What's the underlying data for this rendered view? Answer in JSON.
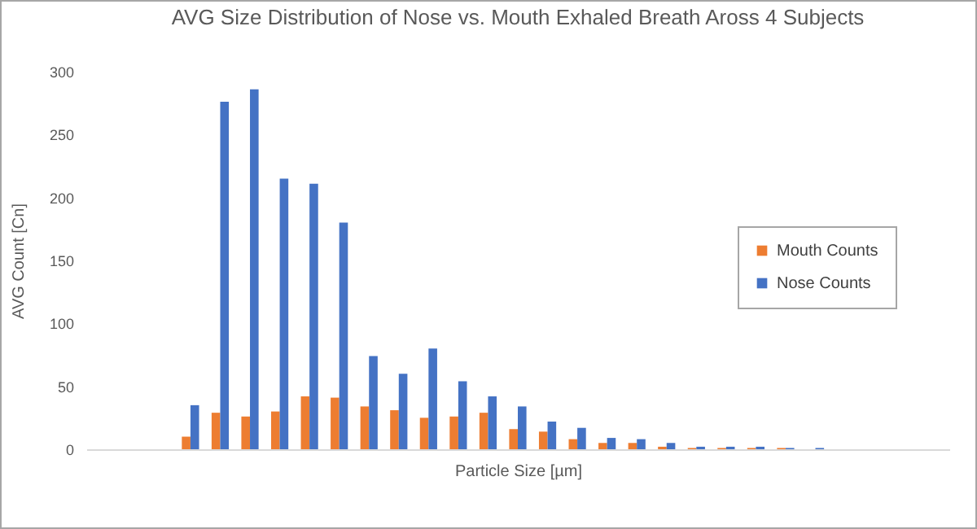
{
  "chart_data": {
    "type": "bar",
    "title": "AVG Size Distribution of Nose vs. Mouth Exhaled Breath Aross 4 Subjects",
    "xlabel": "Particle Size [µm]",
    "ylabel": "AVG Count [Cn]",
    "categories": [
      null,
      null,
      null,
      null,
      null,
      null,
      null,
      null,
      null,
      null,
      null,
      null,
      null,
      null,
      null,
      null,
      null,
      null,
      null,
      null,
      null,
      null,
      null,
      null,
      null,
      null,
      null,
      null,
      null
    ],
    "series": [
      {
        "name": "Mouth Counts",
        "color": "#ed7d31",
        "values": [
          null,
          null,
          null,
          10,
          29,
          26,
          30,
          42,
          41,
          34,
          31,
          25,
          26,
          29,
          16,
          14,
          8,
          5,
          5,
          2,
          1,
          1,
          1,
          1,
          null,
          null,
          null,
          null,
          null
        ]
      },
      {
        "name": "Nose Counts",
        "color": "#4472c4",
        "values": [
          null,
          null,
          null,
          35,
          276,
          286,
          215,
          211,
          180,
          74,
          60,
          80,
          54,
          42,
          34,
          22,
          17,
          9,
          8,
          5,
          2,
          2,
          2,
          1,
          1,
          null,
          null,
          null,
          null
        ]
      }
    ],
    "ylim": [
      0,
      300
    ],
    "yticks": [
      0,
      50,
      100,
      150,
      200,
      250,
      300
    ],
    "grid": false,
    "legend": "right",
    "tick_labels": "y"
  }
}
